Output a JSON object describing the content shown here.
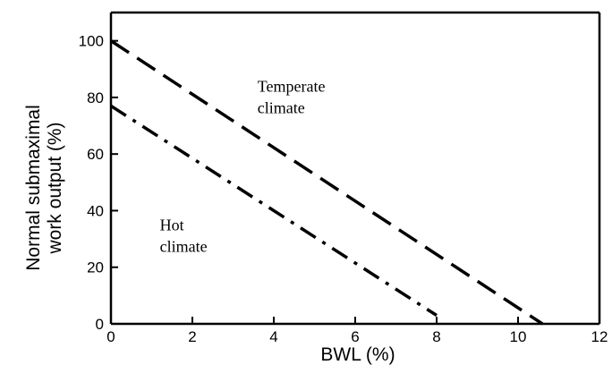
{
  "chart_data": {
    "type": "line",
    "xlabel": "BWL (%)",
    "ylabel_lines": [
      "Normal submaximal",
      "work output (%)"
    ],
    "xlim": [
      0,
      12
    ],
    "ylim": [
      0,
      110
    ],
    "x_ticks": [
      0,
      2,
      4,
      6,
      8,
      10,
      12
    ],
    "y_ticks": [
      0,
      20,
      40,
      60,
      80,
      100
    ],
    "grid": false,
    "series": [
      {
        "line_style": "dashed",
        "x": [
          0,
          10.6
        ],
        "y": [
          100,
          0
        ]
      },
      {
        "line_style": "dash-dot",
        "x": [
          0,
          8
        ],
        "y": [
          77,
          3
        ]
      }
    ],
    "annotations": [
      {
        "lines": [
          "Temperate",
          "climate"
        ],
        "x": 3.6,
        "y": 82
      },
      {
        "lines": [
          "Hot",
          "climate"
        ],
        "x": 1.2,
        "y": 33
      }
    ]
  }
}
